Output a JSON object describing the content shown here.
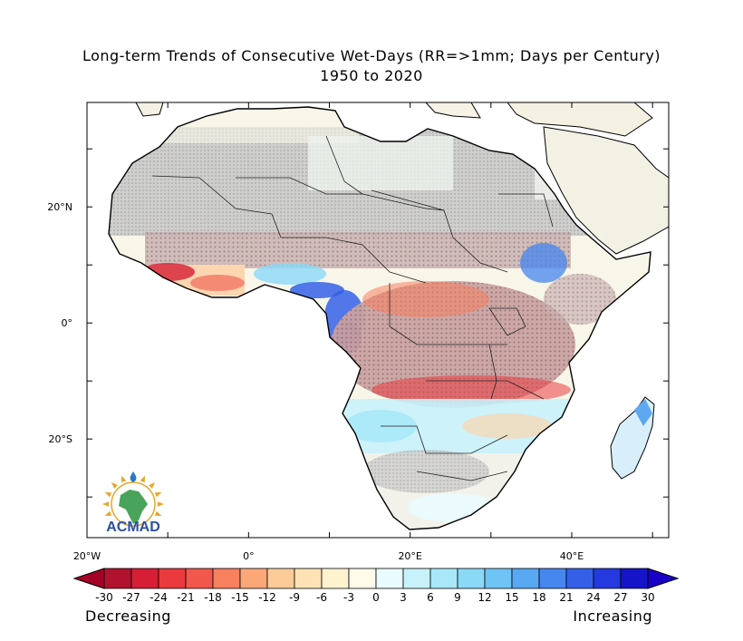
{
  "title_line1": "Long-term Trends of Consecutive Wet-Days (RR=>1mm; Days per Century)",
  "title_line2": "1950 to 2020",
  "map": {
    "lon_range": [
      -20,
      52
    ],
    "lat_range": [
      -37,
      38
    ],
    "x_ticks": [
      {
        "lon": -20,
        "label": "20°W"
      },
      {
        "lon": 0,
        "label": "0°"
      },
      {
        "lon": 20,
        "label": "20°E"
      },
      {
        "lon": 40,
        "label": "40°E"
      }
    ],
    "y_ticks": [
      {
        "lat": 20,
        "label": "20°N"
      },
      {
        "lat": 0,
        "label": "0°"
      },
      {
        "lat": -20,
        "label": "20°S"
      }
    ],
    "colors": {
      "land_neutral": "#f8f6e9",
      "no_data_gray": "#b9b9b9",
      "significant_dots": "#8d6e6e"
    }
  },
  "colorbar": {
    "min": -30,
    "max": 30,
    "step": 3,
    "labels": [
      "-30",
      "-27",
      "-24",
      "-21",
      "-18",
      "-15",
      "-12",
      "-9",
      "-6",
      "-3",
      "0",
      "3",
      "6",
      "9",
      "12",
      "15",
      "18",
      "21",
      "24",
      "27",
      "30"
    ],
    "colors": [
      "#b1122e",
      "#d61f35",
      "#ea3a3e",
      "#f2574c",
      "#f7805f",
      "#fba778",
      "#fdcb97",
      "#fee2b4",
      "#fff2cf",
      "#fffbea",
      "#e9fbff",
      "#c8f2fb",
      "#a8e8f8",
      "#8ad9f7",
      "#6ec4f5",
      "#58a8f3",
      "#4686ef",
      "#3460e8",
      "#2439de",
      "#1614c8"
    ],
    "end_low_color": "#a50026",
    "end_high_color": "#1900c8"
  },
  "legend_words": {
    "left": "Decreasing",
    "right": "Increasing"
  },
  "logo": {
    "text": "ACMAD",
    "text_color": "#2a4fa2",
    "continent_color": "#4aa35a",
    "ray_color": "#e6a52a"
  }
}
